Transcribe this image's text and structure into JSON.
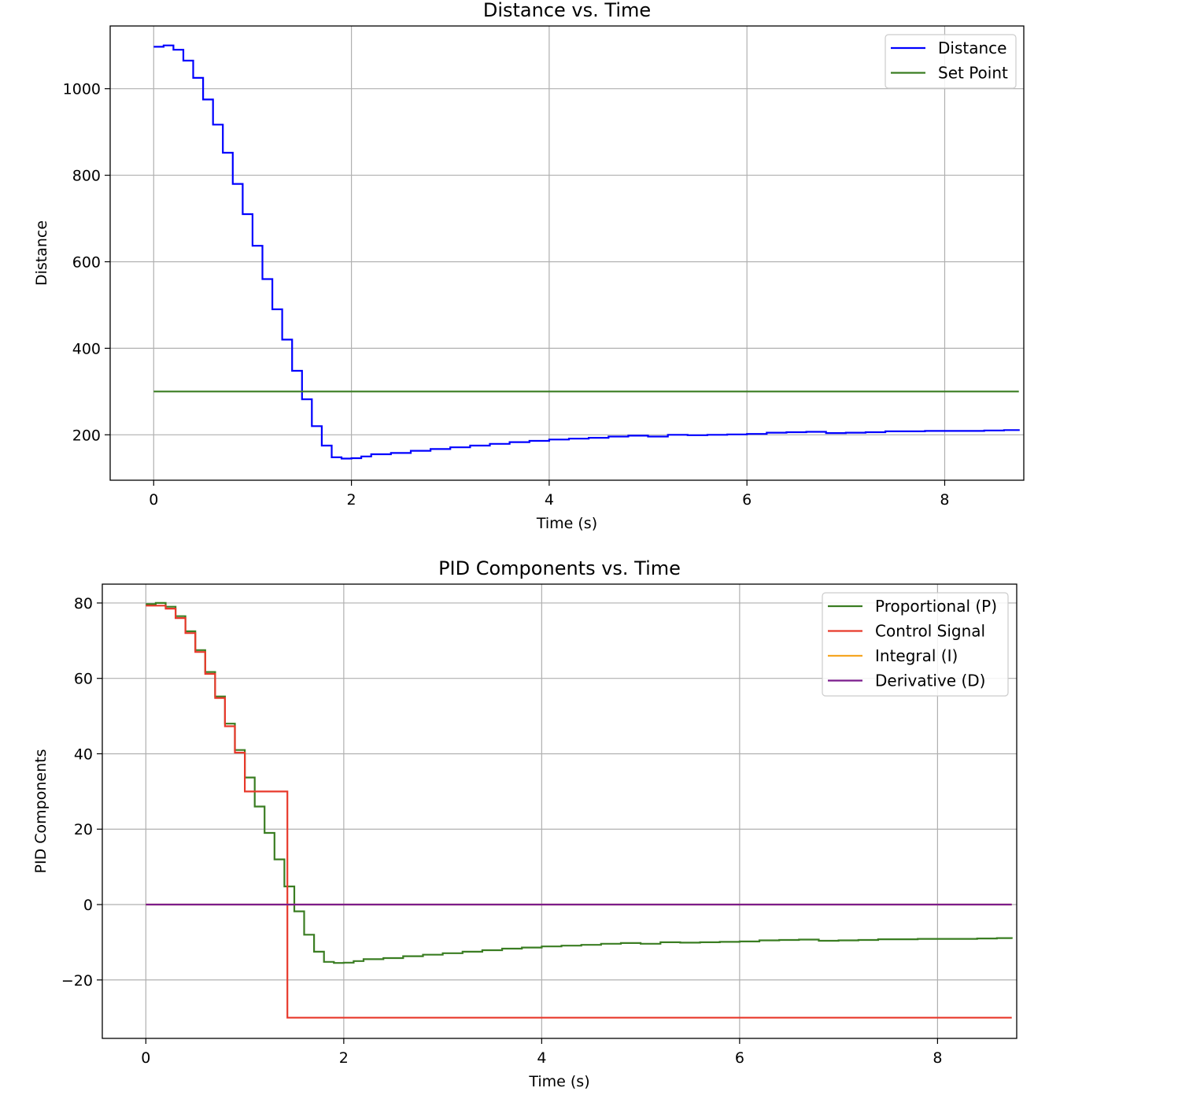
{
  "chart_data": [
    {
      "type": "line",
      "title": "Distance vs. Time",
      "xlabel": "Time (s)",
      "ylabel": "Distance",
      "xlim": [
        -0.44,
        8.8
      ],
      "ylim": [
        95,
        1145
      ],
      "xticks": [
        0,
        2,
        4,
        6,
        8
      ],
      "yticks": [
        200,
        400,
        600,
        800,
        1000
      ],
      "grid": true,
      "legend": "top-right",
      "step": true,
      "series": [
        {
          "name": "Distance",
          "color": "#0000ff",
          "x": [
            0,
            0.1,
            0.2,
            0.3,
            0.4,
            0.5,
            0.6,
            0.7,
            0.8,
            0.9,
            1.0,
            1.1,
            1.2,
            1.3,
            1.4,
            1.5,
            1.6,
            1.7,
            1.8,
            1.9,
            2.0,
            2.1,
            2.2,
            2.4,
            2.6,
            2.8,
            3.0,
            3.2,
            3.4,
            3.6,
            3.8,
            4.0,
            4.2,
            4.4,
            4.6,
            4.8,
            5.0,
            5.2,
            5.4,
            5.6,
            5.8,
            6.0,
            6.2,
            6.4,
            6.6,
            6.8,
            7.0,
            7.2,
            7.4,
            7.6,
            7.8,
            8.0,
            8.2,
            8.4,
            8.6,
            8.75
          ],
          "y": [
            1097,
            1100,
            1090,
            1065,
            1025,
            975,
            917,
            852,
            780,
            710,
            637,
            560,
            490,
            420,
            348,
            282,
            220,
            175,
            148,
            145,
            146,
            150,
            155,
            158,
            163,
            167,
            171,
            175,
            179,
            183,
            186,
            189,
            191,
            193,
            196,
            198,
            196,
            200,
            199,
            200,
            201,
            202,
            205,
            206,
            207,
            204,
            205,
            206,
            208,
            208,
            209,
            209,
            209,
            210,
            211,
            209
          ]
        },
        {
          "name": "Set Point",
          "color": "#3a7d22",
          "x": [
            0,
            8.75
          ],
          "y": [
            300,
            300
          ]
        }
      ]
    },
    {
      "type": "line",
      "title": "PID Components vs. Time",
      "xlabel": "Time (s)",
      "ylabel": "PID Components",
      "xlim": [
        -0.44,
        8.8
      ],
      "ylim": [
        -35.5,
        85.0
      ],
      "xticks": [
        0,
        2,
        4,
        6,
        8
      ],
      "yticks": [
        -20,
        0,
        20,
        40,
        60,
        80
      ],
      "ytick_labels": [
        "−20",
        "0",
        "20",
        "40",
        "60",
        "80"
      ],
      "grid": true,
      "legend": "top-right",
      "step": true,
      "series": [
        {
          "name": "Proportional (P)",
          "color": "#3a7d22",
          "x": [
            0,
            0.1,
            0.2,
            0.3,
            0.4,
            0.5,
            0.6,
            0.7,
            0.8,
            0.9,
            1.0,
            1.1,
            1.2,
            1.3,
            1.4,
            1.5,
            1.6,
            1.7,
            1.8,
            1.9,
            2.0,
            2.1,
            2.2,
            2.4,
            2.6,
            2.8,
            3.0,
            3.2,
            3.4,
            3.6,
            3.8,
            4.0,
            4.2,
            4.4,
            4.6,
            4.8,
            5.0,
            5.2,
            5.4,
            5.6,
            5.8,
            6.0,
            6.2,
            6.4,
            6.6,
            6.8,
            7.0,
            7.2,
            7.4,
            7.6,
            7.8,
            8.0,
            8.2,
            8.4,
            8.6,
            8.75
          ],
          "y": [
            79.7,
            80.0,
            79.0,
            76.5,
            72.5,
            67.5,
            61.7,
            55.2,
            48.0,
            41.0,
            33.7,
            26.0,
            19.0,
            12.0,
            4.8,
            -1.8,
            -8.0,
            -12.5,
            -15.2,
            -15.5,
            -15.4,
            -15.0,
            -14.5,
            -14.2,
            -13.7,
            -13.3,
            -12.9,
            -12.5,
            -12.1,
            -11.7,
            -11.4,
            -11.1,
            -10.9,
            -10.7,
            -10.4,
            -10.2,
            -10.4,
            -10.0,
            -10.1,
            -10.0,
            -9.9,
            -9.8,
            -9.5,
            -9.4,
            -9.3,
            -9.6,
            -9.5,
            -9.4,
            -9.2,
            -9.2,
            -9.1,
            -9.1,
            -9.1,
            -9.0,
            -8.9,
            -9.1
          ]
        },
        {
          "name": "Control Signal",
          "color": "#e8392b",
          "x": [
            0,
            0.1,
            0.2,
            0.3,
            0.4,
            0.5,
            0.6,
            0.7,
            0.8,
            0.9,
            1.0,
            1.43,
            8.75
          ],
          "y": [
            79.3,
            79.3,
            78.5,
            76.0,
            72.0,
            67.0,
            61.2,
            54.8,
            47.3,
            40.3,
            30.0,
            -30.0,
            -30.0
          ]
        },
        {
          "name": "Integral (I)",
          "color": "#f5a623",
          "x": [
            0,
            8.75
          ],
          "y": [
            0,
            0
          ]
        },
        {
          "name": "Derivative (D)",
          "color": "#7b1c8c",
          "x": [
            0,
            8.75
          ],
          "y": [
            0,
            0
          ]
        }
      ]
    }
  ]
}
